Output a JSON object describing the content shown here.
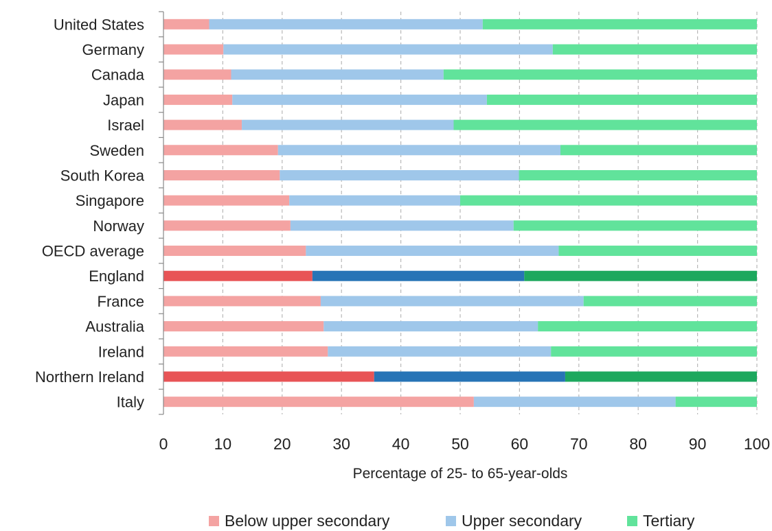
{
  "chart_data": {
    "type": "bar",
    "orientation": "horizontal",
    "stacked": true,
    "categories": [
      "United States",
      "Germany",
      "Canada",
      "Japan",
      "Israel",
      "Sweden",
      "South Korea",
      "Singapore",
      "Norway",
      "OECD average",
      "England",
      "France",
      "Australia",
      "Ireland",
      "Northern Ireland",
      "Italy"
    ],
    "series": [
      {
        "name": "Below upper secondary",
        "values": [
          7.7,
          10.1,
          11.4,
          11.6,
          13.2,
          19.3,
          19.6,
          21.2,
          21.4,
          24.0,
          25.1,
          26.5,
          27.0,
          27.7,
          35.5,
          52.3
        ]
      },
      {
        "name": "Upper secondary",
        "values": [
          46.1,
          55.5,
          35.8,
          42.9,
          35.7,
          47.6,
          40.3,
          28.8,
          37.6,
          42.6,
          35.7,
          44.3,
          36.1,
          37.6,
          32.2,
          34.0
        ]
      },
      {
        "name": "Tertiary",
        "values": [
          46.2,
          34.4,
          52.8,
          45.5,
          51.1,
          33.1,
          40.1,
          50.0,
          41.0,
          33.4,
          39.2,
          29.2,
          36.9,
          34.7,
          32.3,
          13.7
        ]
      }
    ],
    "highlighted_categories": [
      "England",
      "Northern Ireland"
    ],
    "colors": {
      "normal": [
        "#f4a3a2",
        "#9fc7ea",
        "#61e39b"
      ],
      "highlight": [
        "#e85456",
        "#2774b6",
        "#1da85e"
      ]
    },
    "xlabel": "Percentage of 25- to 65-year-olds",
    "ylabel": "",
    "xlim": [
      0,
      100
    ],
    "xticks": [
      0,
      10,
      20,
      30,
      40,
      50,
      60,
      70,
      80,
      90,
      100
    ],
    "grid": "vertical dashed",
    "legend_position": "bottom"
  }
}
